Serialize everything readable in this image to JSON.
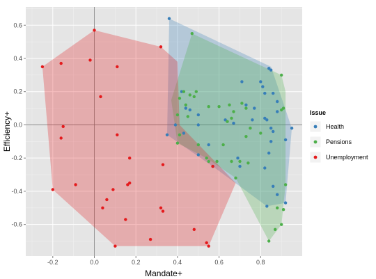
{
  "chart_data": {
    "type": "scatter",
    "xlabel": "Mandate+",
    "ylabel": "Efficiency+",
    "xlim": [
      -0.33,
      1.0
    ],
    "ylim": [
      -0.79,
      0.71
    ],
    "x_ticks": [
      -0.2,
      0.0,
      0.2,
      0.4,
      0.6,
      0.8
    ],
    "x_tick_labels": [
      "-0.2",
      "0.0",
      "0.2",
      "0.4",
      "0.6",
      "0.8"
    ],
    "y_ticks": [
      -0.6,
      -0.4,
      -0.2,
      0.0,
      0.2,
      0.4,
      0.6
    ],
    "y_tick_labels": [
      "-0.6",
      "-0.4",
      "-0.2",
      "0.0",
      "0.2",
      "0.4",
      "0.6"
    ],
    "grid": true,
    "reference_lines": {
      "x": 0.0,
      "y": 0.0
    },
    "legend": {
      "title": "Issue",
      "placement": "right"
    },
    "series": [
      {
        "name": "Health",
        "color": "#377eb8",
        "hull": [
          [
            0.36,
            0.64
          ],
          [
            0.85,
            0.35
          ],
          [
            0.95,
            -0.02
          ],
          [
            0.92,
            -0.47
          ],
          [
            0.83,
            -0.49
          ],
          [
            0.7,
            -0.37
          ],
          [
            0.57,
            -0.25
          ],
          [
            0.35,
            -0.06
          ],
          [
            0.36,
            0.64
          ]
        ],
        "points": [
          [
            0.36,
            0.64
          ],
          [
            0.84,
            0.34
          ],
          [
            0.85,
            0.33
          ],
          [
            0.71,
            0.26
          ],
          [
            0.8,
            0.26
          ],
          [
            0.81,
            0.23
          ],
          [
            0.82,
            0.19
          ],
          [
            0.86,
            0.19
          ],
          [
            0.88,
            0.14
          ],
          [
            0.73,
            0.12
          ],
          [
            0.77,
            0.1
          ],
          [
            0.88,
            0.08
          ],
          [
            0.76,
            0.03
          ],
          [
            0.82,
            0.04
          ],
          [
            0.83,
            0.03
          ],
          [
            0.63,
            0.03
          ],
          [
            0.67,
            0.01
          ],
          [
            0.85,
            -0.02
          ],
          [
            0.86,
            -0.04
          ],
          [
            0.95,
            -0.02
          ],
          [
            0.92,
            -0.09
          ],
          [
            0.85,
            -0.1
          ],
          [
            0.84,
            -0.17
          ],
          [
            0.69,
            -0.2
          ],
          [
            0.7,
            -0.25
          ],
          [
            0.82,
            -0.26
          ],
          [
            0.86,
            -0.37
          ],
          [
            0.88,
            -0.42
          ],
          [
            0.92,
            -0.47
          ],
          [
            0.83,
            -0.49
          ],
          [
            0.42,
            0.2
          ],
          [
            0.46,
            0.09
          ],
          [
            0.5,
            0.06
          ],
          [
            0.5,
            0.0
          ],
          [
            0.44,
            0.1
          ],
          [
            0.39,
            0.0
          ],
          [
            0.35,
            -0.06
          ],
          [
            0.43,
            -0.05
          ],
          [
            0.55,
            -0.12
          ],
          [
            0.5,
            -0.18
          ],
          [
            0.57,
            -0.25
          ]
        ]
      },
      {
        "name": "Pensions",
        "color": "#4daf4a",
        "hull": [
          [
            0.47,
            0.55
          ],
          [
            0.9,
            0.3
          ],
          [
            0.92,
            0.2
          ],
          [
            0.92,
            -0.36
          ],
          [
            0.9,
            -0.6
          ],
          [
            0.84,
            -0.7
          ],
          [
            0.68,
            -0.32
          ],
          [
            0.54,
            -0.2
          ],
          [
            0.4,
            -0.11
          ],
          [
            0.37,
            0.15
          ],
          [
            0.47,
            0.55
          ]
        ],
        "points": [
          [
            0.47,
            0.55
          ],
          [
            0.9,
            0.3
          ],
          [
            0.9,
            0.09
          ],
          [
            0.91,
            0.1
          ],
          [
            0.71,
            0.13
          ],
          [
            0.73,
            0.1
          ],
          [
            0.65,
            0.12
          ],
          [
            0.6,
            0.11
          ],
          [
            0.55,
            0.11
          ],
          [
            0.67,
            0.08
          ],
          [
            0.64,
            0.02
          ],
          [
            0.66,
            0.04
          ],
          [
            0.75,
            -0.02
          ],
          [
            0.8,
            -0.05
          ],
          [
            0.73,
            -0.07
          ],
          [
            0.62,
            -0.12
          ],
          [
            0.7,
            -0.22
          ],
          [
            0.74,
            -0.23
          ],
          [
            0.66,
            -0.22
          ],
          [
            0.59,
            -0.22
          ],
          [
            0.55,
            -0.22
          ],
          [
            0.54,
            -0.2
          ],
          [
            0.5,
            -0.12
          ],
          [
            0.48,
            0.17
          ],
          [
            0.49,
            0.2
          ],
          [
            0.46,
            0.18
          ],
          [
            0.43,
            0.2
          ],
          [
            0.41,
            0.16
          ],
          [
            0.44,
            0.12
          ],
          [
            0.45,
            0.05
          ],
          [
            0.4,
            0.06
          ],
          [
            0.4,
            -0.11
          ],
          [
            0.41,
            -0.06
          ],
          [
            0.68,
            -0.32
          ],
          [
            0.88,
            -0.5
          ],
          [
            0.9,
            -0.6
          ],
          [
            0.84,
            -0.7
          ],
          [
            0.91,
            -0.51
          ],
          [
            0.92,
            -0.36
          ],
          [
            0.87,
            -0.63
          ]
        ]
      },
      {
        "name": "Unemployment",
        "color": "#e41a1c",
        "hull": [
          [
            0.0,
            0.57
          ],
          [
            0.32,
            0.47
          ],
          [
            0.4,
            0.38
          ],
          [
            0.41,
            0.0
          ],
          [
            0.68,
            -0.35
          ],
          [
            0.55,
            -0.73
          ],
          [
            0.1,
            -0.73
          ],
          [
            -0.2,
            -0.39
          ],
          [
            -0.25,
            0.35
          ],
          [
            0.0,
            0.57
          ]
        ],
        "points": [
          [
            0.0,
            0.57
          ],
          [
            0.32,
            0.47
          ],
          [
            -0.02,
            0.39
          ],
          [
            -0.16,
            0.37
          ],
          [
            0.11,
            0.35
          ],
          [
            -0.25,
            0.35
          ],
          [
            0.03,
            0.17
          ],
          [
            -0.15,
            -0.01
          ],
          [
            -0.16,
            -0.08
          ],
          [
            0.11,
            -0.06
          ],
          [
            0.17,
            -0.2
          ],
          [
            0.33,
            -0.24
          ],
          [
            0.57,
            -0.25
          ],
          [
            0.16,
            -0.36
          ],
          [
            0.17,
            -0.35
          ],
          [
            -0.09,
            -0.36
          ],
          [
            -0.2,
            -0.39
          ],
          [
            0.09,
            -0.39
          ],
          [
            0.06,
            -0.45
          ],
          [
            0.04,
            -0.5
          ],
          [
            0.32,
            -0.5
          ],
          [
            0.33,
            -0.52
          ],
          [
            0.15,
            -0.57
          ],
          [
            0.48,
            -0.63
          ],
          [
            0.27,
            -0.69
          ],
          [
            0.54,
            -0.71
          ],
          [
            0.1,
            -0.73
          ],
          [
            0.55,
            -0.73
          ]
        ]
      }
    ]
  }
}
